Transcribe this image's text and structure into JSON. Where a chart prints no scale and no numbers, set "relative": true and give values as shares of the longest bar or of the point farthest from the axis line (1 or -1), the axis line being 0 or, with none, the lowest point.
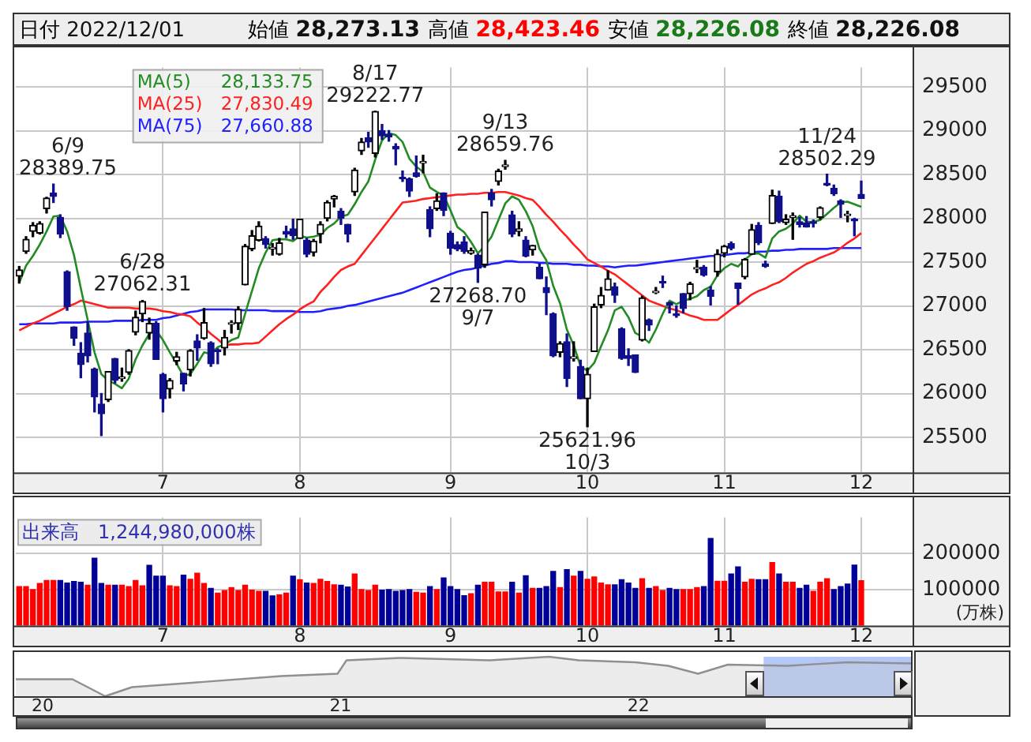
{
  "chart_data": [
    {
      "type": "candlestick",
      "grid": true,
      "colors": [
        "#000000",
        "#000000",
        "#000000",
        "#000000",
        "#000000",
        "#10108c",
        "#10108c",
        "#10108c",
        "#10108c",
        "#10108c",
        "#10108c",
        "#10108c",
        "#10108c",
        "#000000",
        "#10108c",
        "#000000",
        "#000000",
        "#000000",
        "#000000",
        "#000000",
        "#10108c",
        "#10108c",
        "#000000",
        "#000000",
        "#10108c",
        "#000000",
        "#10108c",
        "#000000",
        "#10108c",
        "#10108c",
        "#000000",
        "#000000",
        "#000000",
        "#000000",
        "#000000",
        "#000000",
        "#10108c",
        "#000000",
        "#000000",
        "#10108c",
        "#10108c",
        "#000000",
        "#10108c",
        "#000000",
        "#000000",
        "#000000",
        "#000000",
        "#10108c",
        "#10108c",
        "#000000",
        "#000000",
        "#10108c",
        "#000000",
        "#10108c",
        "#10108c",
        "#10108c",
        "#10108c",
        "#10108c",
        "#10108c",
        "#000000",
        "#10108c",
        "#000000",
        "#10108c",
        "#10108c",
        "#10108c",
        "#10108c",
        "#000000",
        "#10108c",
        "#000000",
        "#10108c",
        "#000000",
        "#000000",
        "#10108c",
        "#000000",
        "#10108c",
        "#000000",
        "#10108c",
        "#10108c",
        "#10108c",
        "#000000",
        "#10108c",
        "#000000",
        "#10108c",
        "#000000",
        "#000000",
        "#000000",
        "#000000",
        "#10108c",
        "#10108c",
        "#10108c",
        "#10108c",
        "#000000",
        "#10108c",
        "#000000",
        "#10108c",
        "#10108c",
        "#10108c",
        "#10108c",
        "#000000",
        "#000000",
        "#10108c",
        "#10108c",
        "#000000",
        "#000000",
        "#10108c",
        "#10108c",
        "#000000",
        "#000000",
        "#10108c",
        "#10108c",
        "#000000",
        "#10108c",
        "#000000",
        "#000000",
        "#10108c",
        "#10108c",
        "#10108c",
        "#000000",
        "#10108c",
        "#10108c",
        "#10108c",
        "#000000",
        "#10108c",
        "#10108c",
        null,
        null,
        null,
        null,
        null,
        null,
        null
      ],
      "value_labels": [
        null,
        null,
        null,
        null,
        null,
        "6/9\n28389.75",
        null,
        null,
        null,
        null,
        null,
        null,
        null,
        null,
        null,
        null,
        null,
        null,
        "6/28\n27062.31",
        null,
        null,
        null,
        null,
        null,
        null,
        null,
        null,
        null,
        null,
        null,
        null,
        null,
        null,
        null,
        null,
        null,
        null,
        null,
        null,
        null,
        null,
        null,
        null,
        null,
        null,
        null,
        null,
        null,
        null,
        null,
        null,
        null,
        "8/17\n29222.77",
        null,
        null,
        null,
        null,
        null,
        null,
        null,
        null,
        null,
        null,
        null,
        null,
        null,
        null,
        "27268.70\n9/7",
        null,
        null,
        null,
        "9/13\n28659.76",
        null,
        null,
        null,
        null,
        null,
        null,
        null,
        null,
        null,
        null,
        null,
        "25621.96\n10/3",
        null,
        null,
        null,
        null,
        null,
        null,
        null,
        null,
        null,
        null,
        null,
        null,
        null,
        null,
        null,
        null,
        null,
        null,
        null,
        null,
        null,
        null,
        null,
        null,
        null,
        null,
        null,
        null,
        null,
        null,
        null,
        null,
        null,
        null,
        "11/24\n28502.29",
        null,
        null,
        null,
        null,
        null,
        null,
        null,
        null,
        null,
        null,
        null,
        null
      ],
      "legend": "top left",
      "ylim": [
        25100,
        29720
      ],
      "yticks": [
        25500,
        26000,
        26500,
        27000,
        27500,
        28000,
        28500,
        29000,
        29500
      ],
      "annotations": [
        "日付 2022/12/01",
        "始値 28,273.13",
        "高値 28,423.46",
        "安値 28,226.08",
        "終値 28,226.08",
        "28,133.75",
        "27,830.49",
        "27,660.88"
      ],
      "categories": [
        null,
        null,
        null,
        null,
        null,
        null,
        null,
        null,
        null,
        null,
        null,
        null,
        null,
        null,
        null,
        null,
        null,
        null,
        null,
        null,
        null,
        "7",
        null,
        null,
        null,
        null,
        null,
        null,
        null,
        null,
        null,
        null,
        null,
        null,
        null,
        null,
        null,
        null,
        null,
        null,
        null,
        "8",
        null,
        null,
        null,
        null,
        null,
        null,
        null,
        null,
        null,
        null,
        null,
        null,
        null,
        null,
        null,
        null,
        null,
        null,
        null,
        null,
        null,
        "9",
        null,
        null,
        null,
        null,
        null,
        null,
        null,
        null,
        null,
        null,
        null,
        null,
        null,
        null,
        null,
        null,
        null,
        null,
        null,
        "10",
        null,
        null,
        null,
        null,
        null,
        null,
        null,
        null,
        null,
        null,
        null,
        null,
        null,
        null,
        null,
        null,
        null,
        null,
        null,
        "11",
        null,
        null,
        null,
        null,
        null,
        null,
        null,
        null,
        null,
        null,
        null,
        null,
        null,
        null,
        null,
        null,
        null,
        null,
        null,
        "12",
        null,
        null,
        null,
        null,
        null,
        null,
        null
      ],
      "ohlc": [
        [
          27340,
          27450,
          27260,
          27410
        ],
        [
          27620,
          27790,
          27600,
          27760
        ],
        [
          27850,
          27950,
          27790,
          27920
        ],
        [
          27830,
          27960,
          27820,
          27940
        ],
        [
          28110,
          28240,
          28060,
          28230
        ],
        [
          28290,
          28389.75,
          28180,
          28250
        ],
        [
          28010,
          28040,
          27780,
          27820
        ],
        [
          27390,
          27400,
          26950,
          26990
        ],
        [
          26760,
          26760,
          26550,
          26630
        ],
        [
          26460,
          26580,
          26180,
          26330
        ],
        [
          26690,
          26820,
          26360,
          26430
        ],
        [
          26280,
          26290,
          25790,
          25960
        ],
        [
          25880,
          26000,
          25520.23,
          25770
        ],
        [
          25930,
          26250,
          25910,
          26250
        ],
        [
          26400,
          26400,
          26120,
          26150
        ],
        [
          26170,
          26290,
          26140,
          26170
        ],
        [
          26240,
          26500,
          26220,
          26490
        ],
        [
          26700,
          26940,
          26670,
          26870
        ],
        [
          26910,
          27062.31,
          26820,
          27050
        ],
        [
          26690,
          26860,
          26620,
          26800
        ],
        [
          26800,
          26820,
          26390,
          26390
        ],
        [
          26220,
          26230,
          25790,
          25940
        ],
        [
          26050,
          26170,
          25950,
          26150
        ],
        [
          26370,
          26470,
          26330,
          26420
        ],
        [
          26230,
          26230,
          26030,
          26110
        ],
        [
          26270,
          26500,
          26200,
          26490
        ],
        [
          26600,
          26670,
          26380,
          26520
        ],
        [
          26630,
          26970,
          26620,
          26810
        ],
        [
          26580,
          26590,
          26310,
          26340
        ],
        [
          26490,
          26510,
          26340,
          26480
        ],
        [
          26520,
          26720,
          26440,
          26640
        ],
        [
          26790,
          26830,
          26690,
          26790
        ],
        [
          26800,
          26990,
          26730,
          26960
        ],
        [
          27240,
          27700,
          27240,
          27680
        ],
        [
          27650,
          27860,
          27630,
          27800
        ],
        [
          27750,
          27960,
          27740,
          27910
        ],
        [
          27770,
          27790,
          27660,
          27700
        ],
        [
          27650,
          27710,
          27580,
          27660
        ],
        [
          27590,
          27770,
          27580,
          27720
        ],
        [
          27850,
          27910,
          27780,
          27820
        ],
        [
          27880,
          27990,
          27760,
          27800
        ],
        [
          27770,
          27990,
          27770,
          27990
        ],
        [
          27750,
          27770,
          27560,
          27590
        ],
        [
          27610,
          27760,
          27570,
          27740
        ],
        [
          27820,
          27960,
          27720,
          27930
        ],
        [
          28000,
          28200,
          27970,
          28180
        ],
        [
          28220,
          28260,
          28130,
          28250
        ],
        [
          28080,
          28110,
          27930,
          28000
        ],
        [
          27930,
          27930,
          27730,
          27820
        ],
        [
          28300,
          28570,
          28260,
          28550
        ],
        [
          28770,
          28910,
          28730,
          28870
        ],
        [
          28920,
          28980,
          28810,
          28870
        ],
        [
          28740,
          29222.77,
          28700,
          29220
        ],
        [
          29000,
          29070,
          28900,
          28940
        ],
        [
          28960,
          29000,
          28880,
          28930
        ],
        [
          28820,
          28850,
          28610,
          28790
        ],
        [
          28460,
          28540,
          28420,
          28450
        ],
        [
          28450,
          28460,
          28250,
          28310
        ],
        [
          28520,
          28710,
          28470,
          28480
        ],
        [
          28630,
          28720,
          28520,
          28640
        ],
        [
          28100,
          28130,
          27790,
          27880
        ],
        [
          28110,
          28280,
          28090,
          28200
        ],
        [
          28290,
          28290,
          28030,
          28090
        ],
        [
          27830,
          27850,
          27590,
          27660
        ],
        [
          27700,
          27730,
          27630,
          27650
        ],
        [
          27730,
          27790,
          27600,
          27620
        ],
        [
          27600,
          27660,
          27590,
          27630
        ],
        [
          27580,
          27590,
          27268.7,
          27430
        ],
        [
          27470,
          28070,
          27440,
          28070
        ],
        [
          28290,
          28330,
          28140,
          28210
        ],
        [
          28420,
          28560,
          28380,
          28540
        ],
        [
          28590,
          28659.76,
          28560,
          28610
        ],
        [
          28040,
          28080,
          27790,
          27820
        ],
        [
          27850,
          27960,
          27800,
          27880
        ],
        [
          27750,
          27790,
          27560,
          27570
        ],
        [
          27640,
          27690,
          27580,
          27690
        ],
        [
          27440,
          27480,
          27310,
          27310
        ],
        [
          27210,
          27330,
          26900,
          27150
        ],
        [
          26910,
          26920,
          26420,
          26430
        ],
        [
          26470,
          26590,
          26420,
          26570
        ],
        [
          26590,
          26680,
          26080,
          26170
        ],
        [
          26400,
          26590,
          26370,
          26420
        ],
        [
          26310,
          26380,
          25940,
          25940
        ],
        [
          25940,
          26290,
          25621.96,
          26220
        ],
        [
          26480,
          27020,
          26480,
          26990
        ],
        [
          27010,
          27210,
          26980,
          27120
        ],
        [
          27180,
          27400,
          27180,
          27310
        ],
        [
          27220,
          27260,
          27040,
          27120
        ],
        [
          26740,
          26750,
          26390,
          26400
        ],
        [
          26430,
          26510,
          26320,
          26400
        ],
        [
          26440,
          26440,
          26240,
          26240
        ],
        [
          26610,
          27110,
          26600,
          27090
        ],
        [
          26840,
          26850,
          26720,
          26780
        ],
        [
          27150,
          27210,
          27140,
          27160
        ],
        [
          27270,
          27340,
          27210,
          27260
        ],
        [
          27040,
          27040,
          26920,
          27010
        ],
        [
          26900,
          27000,
          26870,
          26890
        ],
        [
          27140,
          27140,
          26920,
          26970
        ],
        [
          27140,
          27270,
          27070,
          27250
        ],
        [
          27420,
          27520,
          27380,
          27430
        ],
        [
          27440,
          27460,
          27340,
          27350
        ],
        [
          27180,
          27220,
          27010,
          27110
        ],
        [
          27390,
          27640,
          27340,
          27590
        ],
        [
          27600,
          27690,
          27560,
          27680
        ],
        [
          27710,
          27730,
          27640,
          27660
        ],
        [
          27260,
          27260,
          27020,
          27200
        ],
        [
          27330,
          27540,
          27310,
          27530
        ],
        [
          27590,
          27930,
          27590,
          27870
        ],
        [
          27920,
          27950,
          27700,
          27720
        ],
        [
          27480,
          27510,
          27440,
          27450
        ],
        [
          27940,
          28320,
          27940,
          28260
        ],
        [
          28250,
          28310,
          27950,
          27960
        ],
        [
          27950,
          28040,
          27930,
          27990
        ],
        [
          28010,
          28060,
          27760,
          28030
        ],
        [
          27960,
          28010,
          27900,
          27930
        ],
        [
          27950,
          28020,
          27900,
          27900
        ],
        [
          27960,
          27980,
          27900,
          27940
        ],
        [
          28010,
          28130,
          27990,
          28120
        ],
        [
          28400,
          28502.29,
          28370,
          28380
        ],
        [
          28340,
          28380,
          28260,
          28280
        ],
        [
          28200,
          28210,
          28010,
          28160
        ],
        [
          28030,
          28080,
          27960,
          28030
        ],
        [
          27990,
          28000,
          27800,
          27970
        ],
        [
          28273.13,
          28423.46,
          28226.08,
          28226.08
        ],
        null,
        null,
        null,
        null,
        null,
        null,
        null
      ],
      "series": [
        {
          "name": "MA(5)",
          "type": "line",
          "color": "#238b23",
          "values": [
            27260,
            27460,
            27570,
            27700,
            27850,
            28020,
            28030,
            27850,
            27580,
            27200,
            26840,
            26470,
            26220,
            26150,
            26110,
            26060,
            26170,
            26390,
            26550,
            26680,
            26720,
            26610,
            26470,
            26340,
            26200,
            26220,
            26340,
            26470,
            26450,
            26530,
            26560,
            26610,
            26640,
            26910,
            27170,
            27430,
            27610,
            27750,
            27760,
            27760,
            27740,
            27800,
            27780,
            27790,
            27810,
            27890,
            27940,
            28020,
            28040,
            28160,
            28300,
            28420,
            28670,
            28890,
            28970,
            28950,
            28870,
            28680,
            28590,
            28530,
            28350,
            28300,
            28260,
            28090,
            27900,
            27840,
            27730,
            27600,
            27680,
            27790,
            27980,
            28170,
            28250,
            28210,
            28080,
            27910,
            27650,
            27520,
            27230,
            27030,
            26730,
            26550,
            26310,
            26260,
            26350,
            26540,
            26720,
            26950,
            26990,
            26870,
            26690,
            26650,
            26580,
            26730,
            26910,
            27060,
            27020,
            27060,
            27080,
            27110,
            27180,
            27220,
            27350,
            27430,
            27480,
            27450,
            27530,
            27590,
            27600,
            27550,
            27770,
            27850,
            27880,
            27940,
            28030,
            27960,
            27960,
            27980,
            28050,
            28120,
            28180,
            28190,
            28160,
            28130,
            null,
            null,
            null,
            null,
            null,
            null,
            null
          ]
        },
        {
          "name": "MA(25)",
          "type": "line",
          "color": "#ff2020",
          "values": [
            26720,
            26760,
            26800,
            26830,
            26870,
            26910,
            26950,
            26990,
            27020,
            27060,
            27040,
            27020,
            27000,
            26980,
            26980,
            26980,
            26980,
            26970,
            26970,
            26970,
            26960,
            26940,
            26930,
            26910,
            26900,
            26880,
            26810,
            26750,
            26680,
            26620,
            26550,
            26560,
            26560,
            26570,
            26570,
            26580,
            26650,
            26720,
            26790,
            26850,
            26900,
            26960,
            27010,
            27050,
            27160,
            27240,
            27330,
            27410,
            27450,
            27480,
            27580,
            27680,
            27780,
            27880,
            27980,
            28080,
            28180,
            28190,
            28200,
            28220,
            28230,
            28240,
            28250,
            28260,
            28270,
            28270,
            28280,
            28280,
            28290,
            28290,
            28300,
            28300,
            28280,
            28260,
            28230,
            28210,
            28130,
            28040,
            27960,
            27870,
            27790,
            27700,
            27620,
            27530,
            27490,
            27450,
            27400,
            27360,
            27300,
            27240,
            27180,
            27120,
            27060,
            27030,
            27000,
            26970,
            26950,
            26920,
            26890,
            26870,
            26840,
            26840,
            26840,
            26900,
            26960,
            27010,
            27070,
            27130,
            27170,
            27200,
            27240,
            27270,
            27320,
            27380,
            27430,
            27480,
            27510,
            27550,
            27580,
            27610,
            27660,
            27720,
            27770,
            27830,
            null,
            null,
            null,
            null,
            null,
            null,
            null
          ]
        },
        {
          "name": "MA(75)",
          "type": "line",
          "color": "#2020ff",
          "values": [
            26790,
            26790,
            26800,
            26800,
            26800,
            26800,
            26810,
            26810,
            26810,
            26810,
            26820,
            26820,
            26820,
            26820,
            26830,
            26830,
            26830,
            26830,
            26840,
            26840,
            26840,
            26860,
            26870,
            26890,
            26910,
            26930,
            26940,
            26960,
            26960,
            26960,
            26960,
            26960,
            26950,
            26950,
            26950,
            26950,
            26950,
            26940,
            26940,
            26940,
            26940,
            26930,
            26930,
            26930,
            26940,
            26960,
            26970,
            26980,
            27000,
            27010,
            27030,
            27050,
            27070,
            27090,
            27110,
            27130,
            27150,
            27180,
            27210,
            27240,
            27270,
            27300,
            27330,
            27360,
            27390,
            27410,
            27420,
            27440,
            27460,
            27480,
            27490,
            27510,
            27510,
            27500,
            27500,
            27500,
            27490,
            27490,
            27480,
            27480,
            27480,
            27470,
            27470,
            27460,
            27460,
            27450,
            27450,
            27440,
            27450,
            27460,
            27460,
            27470,
            27480,
            27490,
            27500,
            27510,
            27520,
            27530,
            27540,
            27550,
            27560,
            27570,
            27570,
            27580,
            27590,
            27600,
            27600,
            27610,
            27620,
            27620,
            27630,
            27630,
            27640,
            27640,
            27650,
            27650,
            27650,
            27650,
            27650,
            27660,
            27660,
            27660,
            27660,
            27660,
            null,
            null,
            null,
            null,
            null,
            null,
            null
          ]
        }
      ]
    },
    {
      "type": "bar",
      "title": "出来高　1,244,980,000株",
      "ylabel": "(万株)",
      "grid": true,
      "ylim": [
        0,
        300000
      ],
      "yticks": [
        100000,
        200000
      ],
      "categories": [
        null,
        null,
        null,
        null,
        null,
        null,
        null,
        null,
        null,
        null,
        null,
        null,
        null,
        null,
        null,
        null,
        null,
        null,
        null,
        null,
        null,
        "7",
        null,
        null,
        null,
        null,
        null,
        null,
        null,
        null,
        null,
        null,
        null,
        null,
        null,
        null,
        null,
        null,
        null,
        null,
        null,
        "8",
        null,
        null,
        null,
        null,
        null,
        null,
        null,
        null,
        null,
        null,
        null,
        null,
        null,
        null,
        null,
        null,
        null,
        null,
        null,
        null,
        null,
        "9",
        null,
        null,
        null,
        null,
        null,
        null,
        null,
        null,
        null,
        null,
        null,
        null,
        null,
        null,
        null,
        null,
        null,
        null,
        null,
        "10",
        null,
        null,
        null,
        null,
        null,
        null,
        null,
        null,
        null,
        null,
        null,
        null,
        null,
        null,
        null,
        null,
        null,
        null,
        null,
        "11",
        null,
        null,
        null,
        null,
        null,
        null,
        null,
        null,
        null,
        null,
        null,
        null,
        null,
        null,
        null,
        null,
        null,
        null,
        null,
        "12",
        null,
        null,
        null,
        null,
        null,
        null,
        null
      ],
      "values": [
        108000,
        108000,
        100000,
        117000,
        125000,
        125000,
        125000,
        118000,
        122000,
        120000,
        112000,
        187000,
        117000,
        112000,
        112000,
        112000,
        108000,
        125000,
        110000,
        167000,
        137000,
        137000,
        110000,
        108000,
        140000,
        128000,
        145000,
        117000,
        103000,
        90000,
        97000,
        105000,
        97000,
        112000,
        98000,
        95000,
        95000,
        82000,
        85000,
        90000,
        137000,
        127000,
        118000,
        117000,
        128000,
        122000,
        113000,
        112000,
        107000,
        143000,
        100000,
        97000,
        112000,
        98000,
        100000,
        95000,
        97000,
        100000,
        92000,
        90000,
        108000,
        100000,
        132000,
        108000,
        100000,
        83000,
        88000,
        112000,
        120000,
        120000,
        93000,
        93000,
        120000,
        90000,
        138000,
        103000,
        103000,
        108000,
        150000,
        105000,
        155000,
        137000,
        150000,
        128000,
        135000,
        118000,
        113000,
        113000,
        127000,
        118000,
        103000,
        130000,
        103000,
        108000,
        97000,
        103000,
        100000,
        100000,
        100000,
        105000,
        108000,
        242000,
        123000,
        123000,
        143000,
        163000,
        120000,
        128000,
        127000,
        127000,
        175000,
        143000,
        120000,
        120000,
        103000,
        112000,
        95000,
        120000,
        130000,
        100000,
        108000,
        115000,
        168000,
        124500,
        null,
        null,
        null,
        null,
        null,
        null,
        null
      ],
      "colors": [
        "#ff0000",
        "#ff0000",
        "#ff0000",
        "#ff0000",
        "#ff0000",
        "#ff0000",
        "#000099",
        "#000099",
        "#000099",
        "#000099",
        "#ff0000",
        "#000099",
        "#000099",
        "#ff0000",
        "#000099",
        "#ff0000",
        "#ff0000",
        "#ff0000",
        "#ff0000",
        "#000099",
        "#000099",
        "#000099",
        "#ff0000",
        "#ff0000",
        "#000099",
        "#ff0000",
        "#ff0000",
        "#ff0000",
        "#000099",
        "#ff0000",
        "#ff0000",
        "#ff0000",
        "#ff0000",
        "#ff0000",
        "#ff0000",
        "#ff0000",
        "#000099",
        "#000099",
        "#ff0000",
        "#ff0000",
        "#000099",
        "#ff0000",
        "#000099",
        "#ff0000",
        "#ff0000",
        "#ff0000",
        "#ff0000",
        "#000099",
        "#000099",
        "#ff0000",
        "#ff0000",
        "#ff0000",
        "#ff0000",
        "#000099",
        "#000099",
        "#000099",
        "#000099",
        "#000099",
        "#ff0000",
        "#ff0000",
        "#000099",
        "#ff0000",
        "#000099",
        "#000099",
        "#000099",
        "#000099",
        "#ff0000",
        "#000099",
        "#ff0000",
        "#ff0000",
        "#ff0000",
        "#ff0000",
        "#000099",
        "#ff0000",
        "#000099",
        "#ff0000",
        "#000099",
        "#000099",
        "#000099",
        "#ff0000",
        "#000099",
        "#ff0000",
        "#000099",
        "#ff0000",
        "#ff0000",
        "#ff0000",
        "#ff0000",
        "#000099",
        "#000099",
        "#000099",
        "#000099",
        "#ff0000",
        "#000099",
        "#ff0000",
        "#ff0000",
        "#000099",
        "#000099",
        "#ff0000",
        "#ff0000",
        "#ff0000",
        "#000099",
        "#000099",
        "#ff0000",
        "#ff0000",
        "#000099",
        "#000099",
        "#ff0000",
        "#ff0000",
        "#000099",
        "#000099",
        "#ff0000",
        "#000099",
        "#ff0000",
        "#ff0000",
        "#000099",
        "#000099",
        "#ff0000",
        "#ff0000",
        "#ff0000",
        "#000099",
        "#000099",
        "#000099",
        "#000099",
        "#ff0000",
        null,
        null,
        null,
        null,
        null,
        null,
        null
      ]
    },
    {
      "type": "area",
      "relative": true,
      "color": "#909090",
      "tick_labels": "x",
      "xlim": [
        2019.91,
        2022.92
      ],
      "xticks": [
        {
          "value": 2020,
          "label": "20"
        },
        {
          "value": 2021,
          "label": "21"
        },
        {
          "value": 2022,
          "label": "22"
        }
      ],
      "x": [
        2019.91,
        2020.1,
        2020.21,
        2020.3,
        2020.5,
        2020.8,
        2020.99,
        2021.02,
        2021.2,
        2021.5,
        2021.7,
        2021.8,
        2021.99,
        2022.1,
        2022.2,
        2022.3,
        2022.5,
        2022.7,
        2022.92
      ],
      "values": [
        0.43,
        0.43,
        0,
        0.23,
        0.34,
        0.51,
        0.57,
        0.91,
        0.97,
        0.91,
        1,
        0.91,
        0.86,
        0.77,
        0.57,
        0.8,
        0.77,
        0.86,
        0.83
      ],
      "bands": [
        {
          "axis": "x",
          "from": 2022.42,
          "to": 2022.92,
          "color": "#b4c8f8"
        }
      ]
    }
  ]
}
